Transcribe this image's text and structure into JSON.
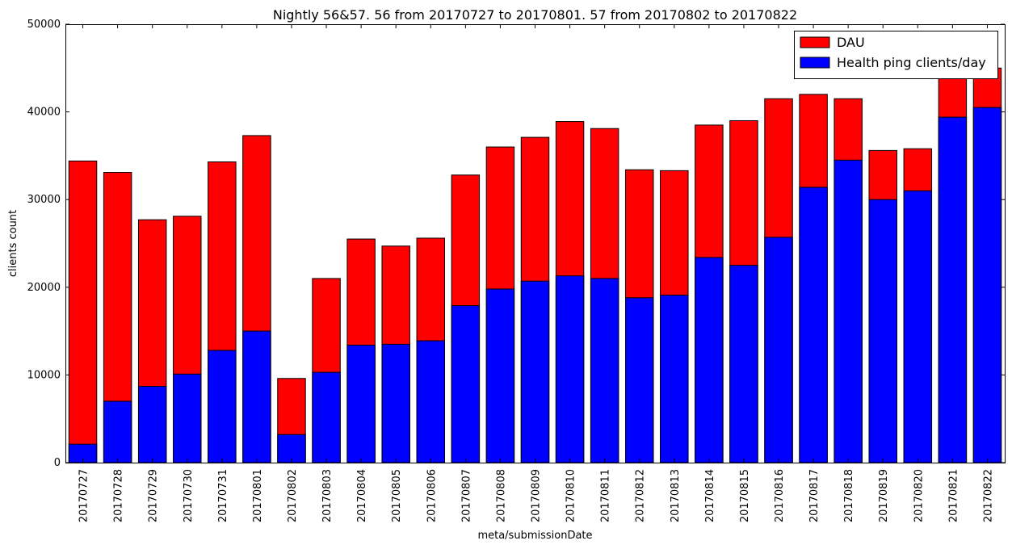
{
  "chart_data": {
    "type": "bar",
    "stacked": "overlay",
    "title": "Nightly 56&57. 56 from 20170727 to 20170801. 57 from 20170802 to 20170822",
    "xlabel": "meta/submissionDate",
    "ylabel": "clients count",
    "ylim": [
      0,
      50000
    ],
    "yticks": [
      "0",
      "10000",
      "20000",
      "30000",
      "40000",
      "50000"
    ],
    "grid": false,
    "legend_position": "top-right",
    "categories": [
      "20170727",
      "20170728",
      "20170729",
      "20170730",
      "20170731",
      "20170801",
      "20170802",
      "20170803",
      "20170804",
      "20170805",
      "20170806",
      "20170807",
      "20170808",
      "20170809",
      "20170810",
      "20170811",
      "20170812",
      "20170813",
      "20170814",
      "20170815",
      "20170816",
      "20170817",
      "20170818",
      "20170819",
      "20170820",
      "20170821",
      "20170822"
    ],
    "series": [
      {
        "name": "DAU",
        "color": "#ff0000",
        "values": [
          34400,
          33100,
          27700,
          28100,
          34300,
          37300,
          9600,
          21000,
          25500,
          24700,
          25600,
          32800,
          36000,
          37100,
          38900,
          38100,
          33400,
          33300,
          38500,
          39000,
          41500,
          42000,
          41500,
          35600,
          35800,
          43800,
          45000
        ]
      },
      {
        "name": "Health ping clients/day",
        "color": "#0000ff",
        "values": [
          2100,
          7000,
          8700,
          10100,
          12800,
          15000,
          3200,
          10300,
          13400,
          13500,
          13900,
          17900,
          19800,
          20700,
          21300,
          21000,
          18800,
          19100,
          23400,
          22500,
          25700,
          31400,
          34500,
          30000,
          31000,
          39400,
          40500
        ]
      }
    ]
  }
}
